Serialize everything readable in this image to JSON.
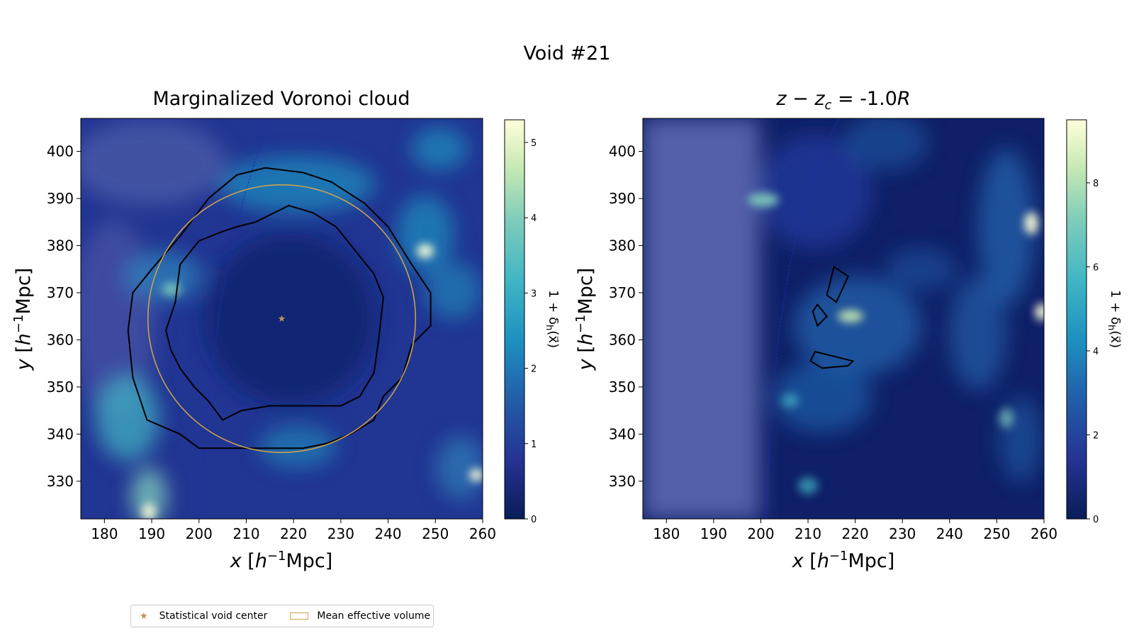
{
  "figure_title": "Void #21",
  "chart_data": [
    {
      "type": "heatmap",
      "title": "Marginalized Voronoi cloud",
      "xlabel": "x [h⁻¹Mpc]",
      "ylabel": "y [h⁻¹Mpc]",
      "xlim": [
        175,
        260
      ],
      "ylim": [
        322,
        407
      ],
      "xticks": [
        180,
        190,
        200,
        210,
        220,
        230,
        240,
        250,
        260
      ],
      "yticks": [
        330,
        340,
        350,
        360,
        370,
        380,
        390,
        400
      ],
      "colorbar": {
        "label": "1 + δh(x⃗)",
        "min": 0,
        "max": 5.3,
        "ticks": [
          0,
          1,
          2,
          3,
          4,
          5
        ]
      },
      "colormap": "YlGnBu_r",
      "void_center": {
        "x": 217.5,
        "y": 364.5
      },
      "mean_effective_volume_radius": 28.3,
      "contours": [
        [
          [
            214,
            396.5
          ],
          [
            222,
            395.5
          ],
          [
            228,
            393.5
          ],
          [
            235,
            389
          ],
          [
            240,
            384
          ],
          [
            245,
            376
          ],
          [
            249,
            370
          ],
          [
            249,
            363
          ],
          [
            245,
            359
          ],
          [
            243,
            352
          ],
          [
            239,
            348
          ],
          [
            237,
            343
          ],
          [
            232,
            340
          ],
          [
            227,
            338
          ],
          [
            222,
            337
          ],
          [
            213,
            337
          ],
          [
            200,
            337
          ],
          [
            196,
            340
          ],
          [
            189,
            343
          ],
          [
            186,
            352
          ],
          [
            185,
            362
          ],
          [
            186,
            370
          ],
          [
            190,
            375
          ],
          [
            196,
            382
          ],
          [
            202,
            390
          ],
          [
            208,
            395
          ]
        ],
        [
          [
            208,
            384
          ],
          [
            212,
            385
          ],
          [
            216,
            387
          ],
          [
            219,
            388.5
          ],
          [
            224,
            387
          ],
          [
            229,
            384
          ],
          [
            233,
            379
          ],
          [
            237,
            374
          ],
          [
            239,
            369
          ],
          [
            238,
            360
          ],
          [
            237,
            353
          ],
          [
            234,
            348
          ],
          [
            230,
            346
          ],
          [
            223,
            346
          ],
          [
            215,
            346
          ],
          [
            209,
            345
          ],
          [
            205,
            343
          ],
          [
            202,
            347
          ],
          [
            199,
            350
          ],
          [
            196,
            354
          ],
          [
            194,
            358
          ],
          [
            193,
            362
          ],
          [
            195,
            368
          ],
          [
            196,
            376
          ],
          [
            200,
            381
          ],
          [
            205,
            383
          ]
        ]
      ]
    },
    {
      "type": "heatmap",
      "title": "z − zc = -1.0R",
      "xlabel": "x [h⁻¹Mpc]",
      "ylabel": "y [h⁻¹Mpc]",
      "xlim": [
        175,
        260
      ],
      "ylim": [
        322,
        407
      ],
      "xticks": [
        180,
        190,
        200,
        210,
        220,
        230,
        240,
        250,
        260
      ],
      "yticks": [
        330,
        340,
        350,
        360,
        370,
        380,
        390,
        400
      ],
      "colorbar": {
        "label": "1 + δh(x⃗)",
        "min": 0,
        "max": 9.5,
        "ticks": [
          0,
          2,
          4,
          6,
          8
        ]
      },
      "colormap": "YlGnBu_r",
      "contours": [
        [
          [
            215.5,
            375.5
          ],
          [
            218.5,
            373.5
          ],
          [
            216,
            368
          ],
          [
            214,
            369.5
          ]
        ],
        [
          [
            212,
            367.5
          ],
          [
            214,
            365
          ],
          [
            212,
            363
          ],
          [
            211,
            366
          ]
        ],
        [
          [
            211.5,
            357.5
          ],
          [
            219.5,
            355.5
          ],
          [
            218.5,
            354.5
          ],
          [
            213,
            354
          ],
          [
            210.5,
            355.5
          ]
        ]
      ]
    }
  ],
  "legend": {
    "items": [
      {
        "label": "Statistical void center",
        "marker": "star",
        "color": "#b8935a"
      },
      {
        "label": "Mean effective volume",
        "marker": "rect",
        "color": "#c9a84a"
      }
    ]
  }
}
